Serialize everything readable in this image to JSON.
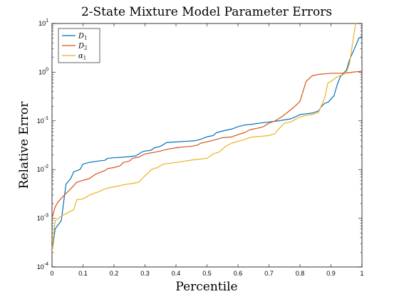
{
  "chart_data": {
    "type": "line",
    "title": "2-State Mixture Model Parameter Errors",
    "xlabel": "Percentile",
    "ylabel": "Relative Error",
    "xlim": [
      0,
      1
    ],
    "ylim": [
      0.0001,
      10
    ],
    "yscale": "log",
    "grid": false,
    "legend_position": "top-left",
    "x_ticks": [
      "0",
      "0.1",
      "0.2",
      "0.3",
      "0.4",
      "0.5",
      "0.6",
      "0.7",
      "0.8",
      "0.9",
      "1"
    ],
    "y_ticks": [
      {
        "base": "10",
        "exp": "-4"
      },
      {
        "base": "10",
        "exp": "-3"
      },
      {
        "base": "10",
        "exp": "-2"
      },
      {
        "base": "10",
        "exp": "-1"
      },
      {
        "base": "10",
        "exp": "0"
      },
      {
        "base": "10",
        "exp": "1"
      }
    ],
    "series": [
      {
        "name": "D",
        "subscript": "1",
        "color": "#0072BD",
        "points": [
          [
            0,
            0.0002
          ],
          [
            0.01,
            0.0006
          ],
          [
            0.03,
            0.0009
          ],
          [
            0.045,
            0.005
          ],
          [
            0.06,
            0.0065
          ],
          [
            0.07,
            0.009
          ],
          [
            0.09,
            0.01
          ],
          [
            0.1,
            0.013
          ],
          [
            0.12,
            0.014
          ],
          [
            0.15,
            0.015
          ],
          [
            0.17,
            0.0155
          ],
          [
            0.18,
            0.017
          ],
          [
            0.2,
            0.0175
          ],
          [
            0.23,
            0.018
          ],
          [
            0.27,
            0.019
          ],
          [
            0.29,
            0.023
          ],
          [
            0.3,
            0.024
          ],
          [
            0.32,
            0.025
          ],
          [
            0.33,
            0.028
          ],
          [
            0.35,
            0.03
          ],
          [
            0.37,
            0.036
          ],
          [
            0.4,
            0.037
          ],
          [
            0.43,
            0.038
          ],
          [
            0.46,
            0.039
          ],
          [
            0.48,
            0.042
          ],
          [
            0.5,
            0.047
          ],
          [
            0.52,
            0.05
          ],
          [
            0.53,
            0.057
          ],
          [
            0.55,
            0.062
          ],
          [
            0.58,
            0.068
          ],
          [
            0.6,
            0.076
          ],
          [
            0.62,
            0.082
          ],
          [
            0.65,
            0.086
          ],
          [
            0.67,
            0.09
          ],
          [
            0.7,
            0.095
          ],
          [
            0.73,
            0.1
          ],
          [
            0.75,
            0.105
          ],
          [
            0.77,
            0.11
          ],
          [
            0.79,
            0.125
          ],
          [
            0.8,
            0.135
          ],
          [
            0.82,
            0.14
          ],
          [
            0.84,
            0.145
          ],
          [
            0.86,
            0.16
          ],
          [
            0.87,
            0.2
          ],
          [
            0.88,
            0.23
          ],
          [
            0.89,
            0.24
          ],
          [
            0.9,
            0.28
          ],
          [
            0.91,
            0.33
          ],
          [
            0.92,
            0.55
          ],
          [
            0.93,
            0.8
          ],
          [
            0.94,
            0.95
          ],
          [
            0.95,
            1.1
          ],
          [
            0.96,
            1.8
          ],
          [
            0.97,
            2.5
          ],
          [
            0.98,
            3.5
          ],
          [
            0.99,
            5
          ],
          [
            1,
            5.5
          ]
        ]
      },
      {
        "name": "D",
        "subscript": "2",
        "color": "#D95319",
        "points": [
          [
            0,
            0.001
          ],
          [
            0.01,
            0.0017
          ],
          [
            0.02,
            0.0022
          ],
          [
            0.04,
            0.003
          ],
          [
            0.06,
            0.004
          ],
          [
            0.08,
            0.0055
          ],
          [
            0.1,
            0.006
          ],
          [
            0.12,
            0.0065
          ],
          [
            0.14,
            0.008
          ],
          [
            0.16,
            0.009
          ],
          [
            0.17,
            0.0095
          ],
          [
            0.18,
            0.0105
          ],
          [
            0.2,
            0.011
          ],
          [
            0.22,
            0.012
          ],
          [
            0.23,
            0.014
          ],
          [
            0.25,
            0.015
          ],
          [
            0.26,
            0.017
          ],
          [
            0.28,
            0.018
          ],
          [
            0.3,
            0.021
          ],
          [
            0.32,
            0.022
          ],
          [
            0.35,
            0.024
          ],
          [
            0.37,
            0.026
          ],
          [
            0.4,
            0.028
          ],
          [
            0.42,
            0.029
          ],
          [
            0.45,
            0.03
          ],
          [
            0.47,
            0.032
          ],
          [
            0.48,
            0.035
          ],
          [
            0.5,
            0.037
          ],
          [
            0.52,
            0.04
          ],
          [
            0.55,
            0.045
          ],
          [
            0.58,
            0.047
          ],
          [
            0.6,
            0.052
          ],
          [
            0.62,
            0.057
          ],
          [
            0.64,
            0.066
          ],
          [
            0.66,
            0.07
          ],
          [
            0.68,
            0.075
          ],
          [
            0.7,
            0.09
          ],
          [
            0.72,
            0.1
          ],
          [
            0.74,
            0.12
          ],
          [
            0.76,
            0.15
          ],
          [
            0.78,
            0.19
          ],
          [
            0.8,
            0.25
          ],
          [
            0.82,
            0.65
          ],
          [
            0.84,
            0.85
          ],
          [
            0.86,
            0.9
          ],
          [
            0.9,
            0.95
          ],
          [
            0.93,
            0.95
          ],
          [
            0.95,
            0.96
          ],
          [
            0.97,
            1.0
          ],
          [
            1,
            1.05
          ]
        ]
      },
      {
        "name": "α",
        "subscript": "1",
        "color": "#EDB120",
        "points": [
          [
            0,
            0.0002
          ],
          [
            0.01,
            0.0009
          ],
          [
            0.03,
            0.0011
          ],
          [
            0.04,
            0.0012
          ],
          [
            0.05,
            0.0013
          ],
          [
            0.07,
            0.0015
          ],
          [
            0.08,
            0.0024
          ],
          [
            0.1,
            0.0025
          ],
          [
            0.11,
            0.0027
          ],
          [
            0.12,
            0.003
          ],
          [
            0.15,
            0.0035
          ],
          [
            0.17,
            0.004
          ],
          [
            0.19,
            0.0043
          ],
          [
            0.22,
            0.0047
          ],
          [
            0.24,
            0.005
          ],
          [
            0.26,
            0.0052
          ],
          [
            0.28,
            0.0055
          ],
          [
            0.3,
            0.0075
          ],
          [
            0.31,
            0.0085
          ],
          [
            0.32,
            0.01
          ],
          [
            0.34,
            0.011
          ],
          [
            0.36,
            0.013
          ],
          [
            0.4,
            0.014
          ],
          [
            0.43,
            0.015
          ],
          [
            0.46,
            0.016
          ],
          [
            0.5,
            0.017
          ],
          [
            0.52,
            0.021
          ],
          [
            0.54,
            0.023
          ],
          [
            0.56,
            0.03
          ],
          [
            0.58,
            0.035
          ],
          [
            0.6,
            0.038
          ],
          [
            0.62,
            0.041
          ],
          [
            0.64,
            0.046
          ],
          [
            0.67,
            0.048
          ],
          [
            0.7,
            0.05
          ],
          [
            0.72,
            0.055
          ],
          [
            0.73,
            0.067
          ],
          [
            0.75,
            0.09
          ],
          [
            0.77,
            0.095
          ],
          [
            0.8,
            0.12
          ],
          [
            0.82,
            0.13
          ],
          [
            0.84,
            0.135
          ],
          [
            0.86,
            0.15
          ],
          [
            0.88,
            0.3
          ],
          [
            0.89,
            0.6
          ],
          [
            0.9,
            0.65
          ],
          [
            0.92,
            0.8
          ],
          [
            0.94,
            0.9
          ],
          [
            0.95,
            1.0
          ],
          [
            0.96,
            1.5
          ],
          [
            0.97,
            4
          ],
          [
            0.98,
            10
          ],
          [
            0.99,
            14
          ],
          [
            1,
            16
          ]
        ]
      }
    ]
  }
}
